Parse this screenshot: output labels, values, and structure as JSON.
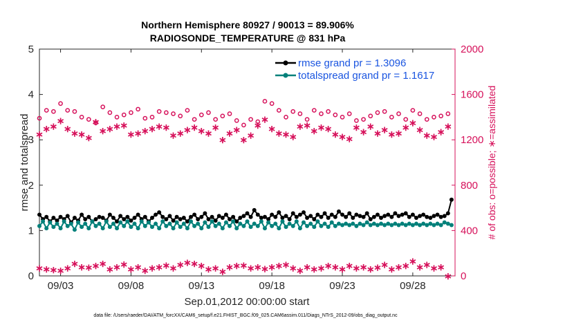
{
  "chart_data": {
    "type": "line",
    "title_line1": "Northern Hemisphere 80927 / 90013 = 89.906%",
    "title_line2": "RADIOSONDE_TEMPERATURE @ 831 hPa",
    "ylabel_left": "rmse and totalspread",
    "ylabel_right": "# of obs: o=possible; ∗=assimilated",
    "xlabel": "Sep.01,2012 00:00:00 start",
    "footer": "data file: /Users/raeder/DAI/ATM_forcXX/CAM6_setup/f.e21.FHIST_BGC.f09_025.CAM6assim.011/Diags_NTrS_2012-09/obs_diag_output.nc",
    "x_range": [
      1.5,
      31.0
    ],
    "x_ticks": [
      3,
      8,
      13,
      18,
      23,
      28
    ],
    "x_tick_labels": [
      "09/03",
      "09/08",
      "09/13",
      "09/18",
      "09/23",
      "09/28"
    ],
    "ylim_left": [
      0,
      5
    ],
    "left_ticks": [
      0,
      1,
      2,
      3,
      4,
      5
    ],
    "ylim_right": [
      0,
      2000
    ],
    "right_ticks": [
      0,
      400,
      800,
      1200,
      1600,
      2000
    ],
    "colors": {
      "rmse": "#000000",
      "spread": "#00807a",
      "obs": "#d6105a",
      "legend_text": "#1a55e0",
      "axis": "#262626"
    },
    "x": [
      1.5,
      1.75,
      2.0,
      2.25,
      2.5,
      2.75,
      3.0,
      3.25,
      3.5,
      3.75,
      4.0,
      4.25,
      4.5,
      4.75,
      5.0,
      5.25,
      5.5,
      5.75,
      6.0,
      6.25,
      6.5,
      6.75,
      7.0,
      7.25,
      7.5,
      7.75,
      8.0,
      8.25,
      8.5,
      8.75,
      9.0,
      9.25,
      9.5,
      9.75,
      10.0,
      10.25,
      10.5,
      10.75,
      11.0,
      11.25,
      11.5,
      11.75,
      12.0,
      12.25,
      12.5,
      12.75,
      13.0,
      13.25,
      13.5,
      13.75,
      14.0,
      14.25,
      14.5,
      14.75,
      15.0,
      15.25,
      15.5,
      15.75,
      16.0,
      16.25,
      16.5,
      16.75,
      17.0,
      17.25,
      17.5,
      17.75,
      18.0,
      18.25,
      18.5,
      18.75,
      19.0,
      19.25,
      19.5,
      19.75,
      20.0,
      20.25,
      20.5,
      20.75,
      21.0,
      21.25,
      21.5,
      21.75,
      22.0,
      22.25,
      22.5,
      22.75,
      23.0,
      23.25,
      23.5,
      23.75,
      24.0,
      24.25,
      24.5,
      24.75,
      25.0,
      25.25,
      25.5,
      25.75,
      26.0,
      26.25,
      26.5,
      26.75,
      27.0,
      27.25,
      27.5,
      27.75,
      28.0,
      28.25,
      28.5,
      28.75,
      29.0,
      29.25,
      29.5,
      29.75,
      30.0,
      30.25,
      30.5,
      30.75
    ],
    "series": [
      {
        "name": "rmse grand pr = 1.3096",
        "values": [
          1.35,
          1.25,
          1.3,
          1.2,
          1.28,
          1.22,
          1.3,
          1.25,
          1.32,
          1.18,
          1.28,
          1.22,
          1.35,
          1.25,
          1.3,
          1.2,
          1.25,
          1.3,
          1.28,
          1.22,
          1.35,
          1.28,
          1.2,
          1.32,
          1.25,
          1.3,
          1.22,
          1.28,
          1.35,
          1.25,
          1.3,
          1.2,
          1.28,
          1.35,
          1.4,
          1.3,
          1.25,
          1.32,
          1.22,
          1.3,
          1.25,
          1.28,
          1.2,
          1.3,
          1.35,
          1.25,
          1.3,
          1.38,
          1.25,
          1.3,
          1.22,
          1.32,
          1.28,
          1.35,
          1.25,
          1.3,
          1.2,
          1.28,
          1.32,
          1.38,
          1.3,
          1.45,
          1.35,
          1.28,
          1.3,
          1.25,
          1.35,
          1.3,
          1.4,
          1.28,
          1.32,
          1.25,
          1.38,
          1.3,
          1.35,
          1.4,
          1.28,
          1.32,
          1.25,
          1.35,
          1.3,
          1.38,
          1.28,
          1.35,
          1.3,
          1.42,
          1.35,
          1.3,
          1.38,
          1.28,
          1.35,
          1.32,
          1.3,
          1.38,
          1.25,
          1.3,
          1.35,
          1.28,
          1.32,
          1.35,
          1.3,
          1.38,
          1.32,
          1.35,
          1.38,
          1.3,
          1.35,
          1.28,
          1.32,
          1.35,
          1.3,
          1.28,
          1.32,
          1.35,
          1.3,
          1.32,
          1.38,
          1.68
        ],
        "legend": "rmse grand pr = 1.3096"
      },
      {
        "name": "totalspread grand pr = 1.1617",
        "values": [
          1.1,
          1.2,
          1.05,
          1.18,
          1.08,
          1.15,
          1.05,
          1.2,
          1.1,
          1.15,
          1.02,
          1.18,
          1.08,
          1.15,
          1.05,
          1.2,
          1.1,
          1.15,
          1.05,
          1.2,
          1.08,
          1.15,
          1.05,
          1.18,
          1.1,
          1.2,
          1.08,
          1.15,
          1.05,
          1.2,
          1.1,
          1.18,
          1.08,
          1.15,
          1.05,
          1.2,
          1.1,
          1.15,
          1.05,
          1.18,
          1.08,
          1.15,
          1.05,
          1.2,
          1.1,
          1.15,
          1.05,
          1.18,
          1.08,
          1.2,
          1.1,
          1.15,
          1.05,
          1.18,
          1.1,
          1.2,
          1.05,
          1.15,
          1.1,
          1.2,
          1.08,
          1.15,
          1.1,
          1.2,
          1.05,
          1.18,
          1.1,
          1.15,
          1.05,
          1.2,
          1.08,
          1.15,
          1.1,
          1.2,
          1.05,
          1.18,
          1.1,
          1.15,
          1.08,
          1.2,
          1.1,
          1.15,
          1.08,
          1.18,
          1.1,
          1.15,
          1.12,
          1.15,
          1.12,
          1.15,
          1.1,
          1.15,
          1.12,
          1.18,
          1.12,
          1.15,
          1.12,
          1.15,
          1.12,
          1.15,
          1.12,
          1.15,
          1.12,
          1.15,
          1.12,
          1.15,
          1.12,
          1.15,
          1.12,
          1.15,
          1.12,
          1.15,
          1.12,
          1.15,
          1.12,
          1.18,
          1.15,
          1.12
        ],
        "legend": "totalspread grand pr = 1.1617"
      }
    ],
    "obs_x": [
      1.5,
      2.0,
      2.5,
      3.0,
      3.5,
      4.0,
      4.5,
      5.0,
      5.5,
      6.0,
      6.5,
      7.0,
      7.5,
      8.0,
      8.5,
      9.0,
      9.5,
      10.0,
      10.5,
      11.0,
      11.5,
      12.0,
      12.5,
      13.0,
      13.5,
      14.0,
      14.5,
      15.0,
      15.5,
      16.0,
      16.5,
      17.0,
      17.5,
      18.0,
      18.5,
      19.0,
      19.5,
      20.0,
      20.5,
      21.0,
      21.5,
      22.0,
      22.5,
      23.0,
      23.5,
      24.0,
      24.5,
      25.0,
      25.5,
      26.0,
      26.5,
      27.0,
      27.5,
      28.0,
      28.5,
      29.0,
      29.5,
      30.0,
      30.5
    ],
    "obs_possible": [
      1390,
      1460,
      1450,
      1520,
      1460,
      1450,
      1400,
      1380,
      1350,
      1490,
      1440,
      1400,
      1420,
      1440,
      1470,
      1390,
      1400,
      1450,
      1440,
      1430,
      1410,
      1460,
      1380,
      1420,
      1440,
      1380,
      1410,
      1430,
      1370,
      1330,
      1380,
      1360,
      1540,
      1520,
      1460,
      1400,
      1450,
      1430,
      1380,
      1460,
      1430,
      1450,
      1420,
      1400,
      1430,
      1370,
      1380,
      1410,
      1440,
      1450,
      1400,
      1430,
      1380,
      1460,
      1430,
      1380,
      1400,
      1410,
      1430
    ],
    "obs_assimilated": [
      1250,
      1300,
      1320,
      1370,
      1300,
      1260,
      1250,
      1220,
      1360,
      1280,
      1300,
      1320,
      1330,
      1250,
      1260,
      1280,
      1300,
      1320,
      1310,
      1240,
      1260,
      1290,
      1310,
      1280,
      1260,
      1310,
      1200,
      1260,
      1290,
      1200,
      1240,
      1330,
      1380,
      1300,
      1260,
      1250,
      1230,
      1320,
      1330,
      1280,
      1310,
      1300,
      1250,
      1230,
      1210,
      1310,
      1270,
      1320,
      1260,
      1290,
      1250,
      1260,
      1310,
      1350,
      1290,
      1240,
      1230,
      1270,
      1320
    ],
    "obs_bottom_assimilated": [
      70,
      60,
      55,
      50,
      70,
      110,
      80,
      75,
      90,
      110,
      60,
      80,
      105,
      60,
      80,
      50,
      70,
      80,
      95,
      70,
      100,
      120,
      110,
      90,
      60,
      70,
      40,
      80,
      90,
      95,
      70,
      80,
      65,
      80,
      90,
      100,
      70,
      50,
      80,
      60,
      70,
      90,
      80,
      60,
      90,
      70,
      80,
      60,
      75,
      100,
      60,
      80,
      90,
      130,
      80,
      100,
      70,
      80,
      0
    ]
  }
}
